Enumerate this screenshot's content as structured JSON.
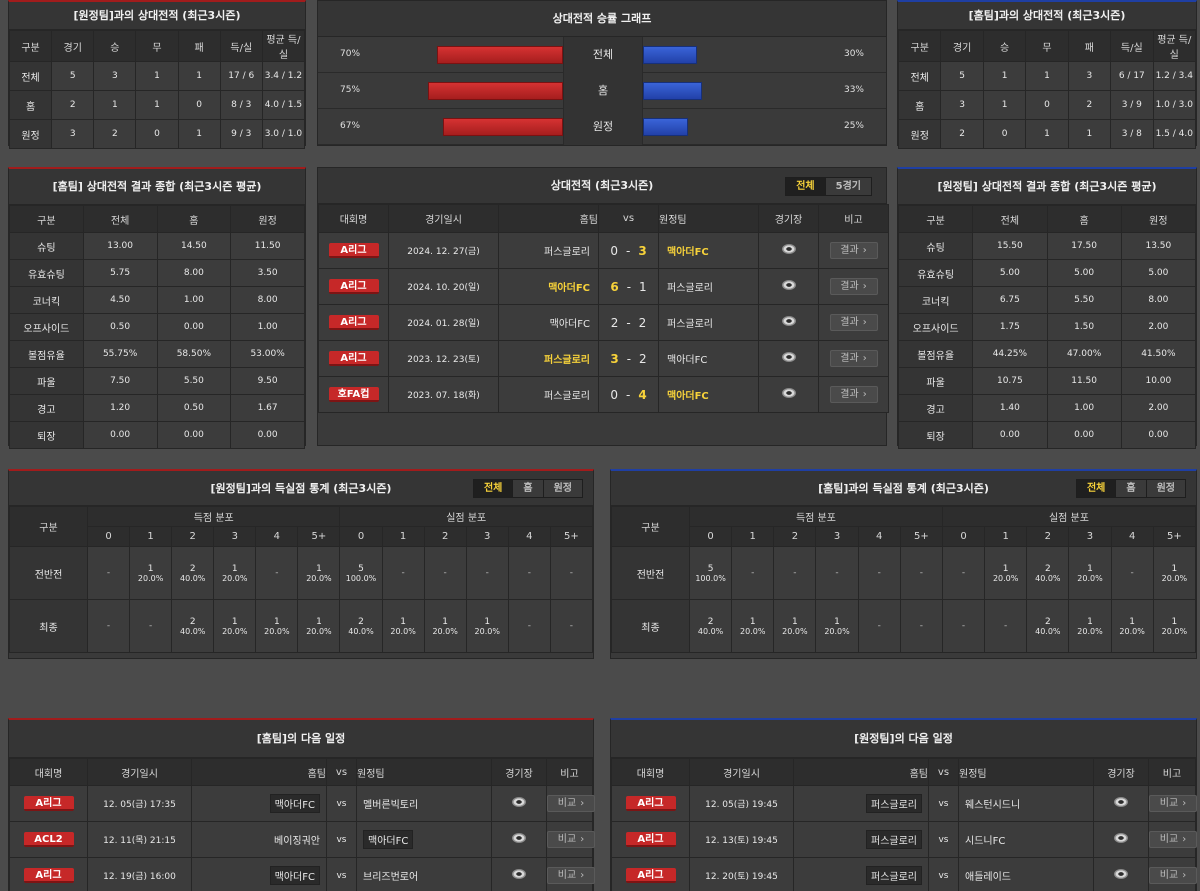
{
  "left_h2h": {
    "title": "[원정팀]과의 상대전적 (최근3시즌)",
    "headers": [
      "구분",
      "경기",
      "승",
      "무",
      "패",
      "득/실",
      "평균 득/실"
    ],
    "rows": [
      [
        "전체",
        "5",
        "3",
        "1",
        "1",
        "17 / 6",
        "3.4 / 1.2"
      ],
      [
        "홈",
        "2",
        "1",
        "1",
        "0",
        "8 / 3",
        "4.0 / 1.5"
      ],
      [
        "원정",
        "3",
        "2",
        "0",
        "1",
        "9 / 3",
        "3.0 / 1.0"
      ]
    ]
  },
  "graph": {
    "title": "상대전적 승률 그래프",
    "rows": [
      {
        "label": "전체",
        "left_pct": "70%",
        "right_pct": "30%",
        "left": 70,
        "right": 30
      },
      {
        "label": "홈",
        "left_pct": "75%",
        "right_pct": "33%",
        "left": 75,
        "right": 33
      },
      {
        "label": "원정",
        "left_pct": "67%",
        "right_pct": "25%",
        "left": 67,
        "right": 25
      }
    ],
    "colors": {
      "home": "#c62828",
      "away": "#2a4fc2"
    }
  },
  "right_h2h": {
    "title": "[홈팀]과의 상대전적 (최근3시즌)",
    "headers": [
      "구분",
      "경기",
      "승",
      "무",
      "패",
      "득/실",
      "평균 득/실"
    ],
    "rows": [
      [
        "전체",
        "5",
        "1",
        "1",
        "3",
        "6 / 17",
        "1.2 / 3.4"
      ],
      [
        "홈",
        "3",
        "1",
        "0",
        "2",
        "3 / 9",
        "1.0 / 3.0"
      ],
      [
        "원정",
        "2",
        "0",
        "1",
        "1",
        "3 / 8",
        "1.5 / 4.0"
      ]
    ]
  },
  "left_summary": {
    "title": "[홈팀] 상대전적 결과 종합 (최근3시즌 평균)",
    "headers": [
      "구분",
      "전체",
      "홈",
      "원정"
    ],
    "rows": [
      [
        "슈팅",
        "13.00",
        "14.50",
        "11.50"
      ],
      [
        "유효슈팅",
        "5.75",
        "8.00",
        "3.50"
      ],
      [
        "코너킥",
        "4.50",
        "1.00",
        "8.00"
      ],
      [
        "오프사이드",
        "0.50",
        "0.00",
        "1.00"
      ],
      [
        "볼점유율",
        "55.75%",
        "58.50%",
        "53.00%"
      ],
      [
        "파울",
        "7.50",
        "5.50",
        "9.50"
      ],
      [
        "경고",
        "1.20",
        "0.50",
        "1.67"
      ],
      [
        "퇴장",
        "0.00",
        "0.00",
        "0.00"
      ]
    ]
  },
  "matches": {
    "title": "상대전적 (최근3시즌)",
    "tabs": [
      "전체",
      "5경기"
    ],
    "headers": {
      "league": "대회명",
      "date": "경기일시",
      "home": "홈팀",
      "vs": "vs",
      "away": "원정팀",
      "stadium": "경기장",
      "note": "비고"
    },
    "result_label": "결과",
    "rows": [
      {
        "league": "A리그",
        "date": "2024. 12. 27(금)",
        "home": "퍼스글로리",
        "hs": "0",
        "as": "3",
        "away": "맥아더FC",
        "winner": "away"
      },
      {
        "league": "A리그",
        "date": "2024. 10. 20(일)",
        "home": "맥아더FC",
        "hs": "6",
        "as": "1",
        "away": "퍼스글로리",
        "winner": "home"
      },
      {
        "league": "A리그",
        "date": "2024. 01. 28(일)",
        "home": "맥아더FC",
        "hs": "2",
        "as": "2",
        "away": "퍼스글로리",
        "winner": "none"
      },
      {
        "league": "A리그",
        "date": "2023. 12. 23(토)",
        "home": "퍼스글로리",
        "hs": "3",
        "as": "2",
        "away": "맥아더FC",
        "winner": "home"
      },
      {
        "league": "호FA컵",
        "date": "2023. 07. 18(화)",
        "home": "퍼스글로리",
        "hs": "0",
        "as": "4",
        "away": "맥아더FC",
        "winner": "away"
      }
    ]
  },
  "right_summary": {
    "title": "[원정팀] 상대전적 결과 종합 (최근3시즌 평균)",
    "headers": [
      "구분",
      "전체",
      "홈",
      "원정"
    ],
    "rows": [
      [
        "슈팅",
        "15.50",
        "17.50",
        "13.50"
      ],
      [
        "유효슈팅",
        "5.00",
        "5.00",
        "5.00"
      ],
      [
        "코너킥",
        "6.75",
        "5.50",
        "8.00"
      ],
      [
        "오프사이드",
        "1.75",
        "1.50",
        "2.00"
      ],
      [
        "볼점유율",
        "44.25%",
        "47.00%",
        "41.50%"
      ],
      [
        "파울",
        "10.75",
        "11.50",
        "10.00"
      ],
      [
        "경고",
        "1.40",
        "1.00",
        "2.00"
      ],
      [
        "퇴장",
        "0.00",
        "0.00",
        "0.00"
      ]
    ]
  },
  "left_goals": {
    "title": "[원정팀]과의 득실점 통계 (최근3시즌)",
    "tabs": [
      "전체",
      "홈",
      "원정"
    ],
    "col_header": "구분",
    "scored_label": "득점 분포",
    "conceded_label": "실점 분포",
    "buckets": [
      "0",
      "1",
      "2",
      "3",
      "4",
      "5+"
    ],
    "rows": [
      {
        "label": "전반전",
        "scored": [
          [
            "-",
            ""
          ],
          [
            "1",
            "20.0%"
          ],
          [
            "2",
            "40.0%"
          ],
          [
            "1",
            "20.0%"
          ],
          [
            "-",
            ""
          ],
          [
            "1",
            "20.0%"
          ]
        ],
        "conceded": [
          [
            "5",
            "100.0%"
          ],
          [
            "-",
            ""
          ],
          [
            "-",
            ""
          ],
          [
            "-",
            ""
          ],
          [
            "-",
            ""
          ],
          [
            "-",
            ""
          ]
        ]
      },
      {
        "label": "최종",
        "scored": [
          [
            "-",
            ""
          ],
          [
            "-",
            ""
          ],
          [
            "2",
            "40.0%"
          ],
          [
            "1",
            "20.0%"
          ],
          [
            "1",
            "20.0%"
          ],
          [
            "1",
            "20.0%"
          ]
        ],
        "conceded": [
          [
            "2",
            "40.0%"
          ],
          [
            "1",
            "20.0%"
          ],
          [
            "1",
            "20.0%"
          ],
          [
            "1",
            "20.0%"
          ],
          [
            "-",
            ""
          ],
          [
            "-",
            ""
          ]
        ]
      }
    ]
  },
  "right_goals": {
    "title": "[홈팀]과의 득실점 통계 (최근3시즌)",
    "tabs": [
      "전체",
      "홈",
      "원정"
    ],
    "col_header": "구분",
    "scored_label": "득점 분포",
    "conceded_label": "실점 분포",
    "buckets": [
      "0",
      "1",
      "2",
      "3",
      "4",
      "5+"
    ],
    "rows": [
      {
        "label": "전반전",
        "scored": [
          [
            "5",
            "100.0%"
          ],
          [
            "-",
            ""
          ],
          [
            "-",
            ""
          ],
          [
            "-",
            ""
          ],
          [
            "-",
            ""
          ],
          [
            "-",
            ""
          ]
        ],
        "conceded": [
          [
            "-",
            ""
          ],
          [
            "1",
            "20.0%"
          ],
          [
            "2",
            "40.0%"
          ],
          [
            "1",
            "20.0%"
          ],
          [
            "-",
            ""
          ],
          [
            "1",
            "20.0%"
          ]
        ]
      },
      {
        "label": "최종",
        "scored": [
          [
            "2",
            "40.0%"
          ],
          [
            "1",
            "20.0%"
          ],
          [
            "1",
            "20.0%"
          ],
          [
            "1",
            "20.0%"
          ],
          [
            "-",
            ""
          ],
          [
            "-",
            ""
          ]
        ],
        "conceded": [
          [
            "-",
            ""
          ],
          [
            "-",
            ""
          ],
          [
            "2",
            "40.0%"
          ],
          [
            "1",
            "20.0%"
          ],
          [
            "1",
            "20.0%"
          ],
          [
            "1",
            "20.0%"
          ]
        ]
      }
    ]
  },
  "left_next": {
    "title": "[홈팀]의 다음 일정",
    "headers": {
      "league": "대회명",
      "date": "경기일시",
      "home": "홈팀",
      "vs": "vs",
      "away": "원정팀",
      "stadium": "경기장",
      "note": "비고"
    },
    "compare_label": "비교",
    "rows": [
      {
        "league": "A리그",
        "date": "12. 05(금) 17:35",
        "home": "맥아더FC",
        "away": "멜버른빅토리",
        "boxed": "home"
      },
      {
        "league": "ACL2",
        "date": "12. 11(목) 21:15",
        "home": "베이징궈안",
        "away": "맥아더FC",
        "boxed": "away"
      },
      {
        "league": "A리그",
        "date": "12. 19(금) 16:00",
        "home": "맥아더FC",
        "away": "브리즈번로어",
        "boxed": "home"
      }
    ]
  },
  "right_next": {
    "title": "[원정팀]의 다음 일정",
    "headers": {
      "league": "대회명",
      "date": "경기일시",
      "home": "홈팀",
      "vs": "vs",
      "away": "원정팀",
      "stadium": "경기장",
      "note": "비고"
    },
    "compare_label": "비교",
    "rows": [
      {
        "league": "A리그",
        "date": "12. 05(금) 19:45",
        "home": "퍼스글로리",
        "away": "웨스턴시드니",
        "boxed": "home"
      },
      {
        "league": "A리그",
        "date": "12. 13(토) 19:45",
        "home": "퍼스글로리",
        "away": "시드니FC",
        "boxed": "home"
      },
      {
        "league": "A리그",
        "date": "12. 20(토) 19:45",
        "home": "퍼스글로리",
        "away": "애들레이드",
        "boxed": "home"
      }
    ]
  }
}
